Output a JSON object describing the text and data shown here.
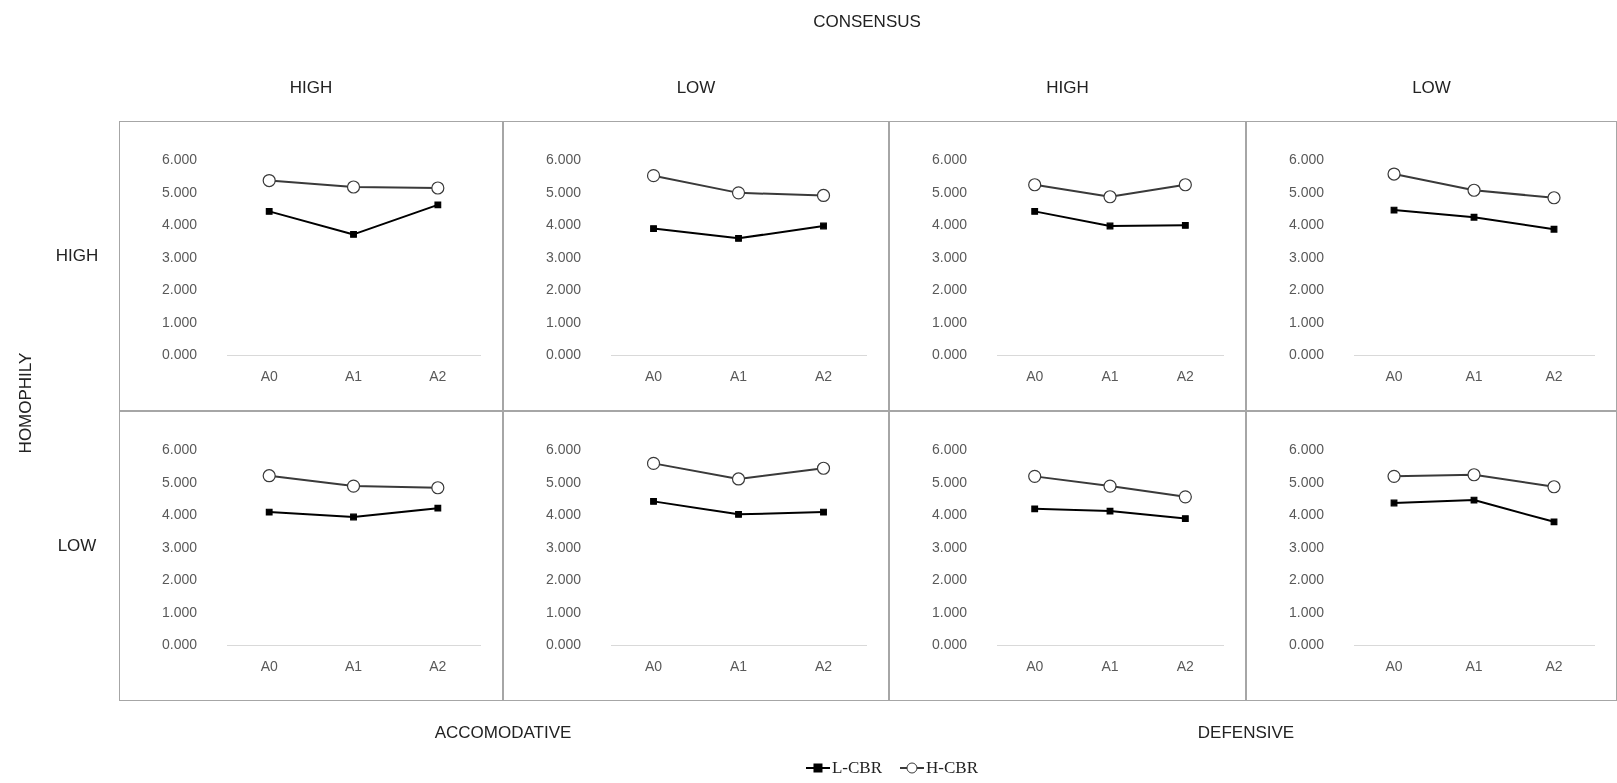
{
  "chart_data": [
    {
      "type": "line",
      "title": "HIGH",
      "ylabel": "HIGH",
      "annotations": [
        "CONSENSUS",
        "HOMOPHILY"
      ],
      "categories": [
        "A0",
        "A1",
        "A2"
      ],
      "ylim": [
        0,
        6
      ],
      "yticks": [
        {
          "value": 0,
          "label": "0.000"
        },
        {
          "value": 1,
          "label": "1.000"
        },
        {
          "value": 2,
          "label": "2.000"
        },
        {
          "value": 3,
          "label": "3.000"
        },
        {
          "value": 4,
          "label": "4.000"
        },
        {
          "value": 5,
          "label": "5.000"
        },
        {
          "value": 6,
          "label": "6.000"
        }
      ],
      "series": [
        {
          "color": "#000000",
          "marker": "square",
          "values": [
            4.43,
            3.72,
            4.63
          ]
        },
        {
          "color": "#3a3a3a",
          "marker": "circle",
          "values": [
            5.38,
            5.18,
            5.15
          ]
        }
      ]
    },
    {
      "type": "line",
      "title": "LOW",
      "categories": [
        "A0",
        "A1",
        "A2"
      ],
      "ylim": [
        0,
        6
      ],
      "yticks": [
        {
          "value": 0,
          "label": "0.000"
        },
        {
          "value": 1,
          "label": "1.000"
        },
        {
          "value": 2,
          "label": "2.000"
        },
        {
          "value": 3,
          "label": "3.000"
        },
        {
          "value": 4,
          "label": "4.000"
        },
        {
          "value": 5,
          "label": "5.000"
        },
        {
          "value": 6,
          "label": "6.000"
        }
      ],
      "series": [
        {
          "color": "#000000",
          "marker": "square",
          "values": [
            3.9,
            3.6,
            3.98
          ]
        },
        {
          "color": "#3a3a3a",
          "marker": "circle",
          "values": [
            5.53,
            5.0,
            4.92
          ]
        }
      ]
    },
    {
      "type": "line",
      "title": "HIGH",
      "categories": [
        "A0",
        "A1",
        "A2"
      ],
      "ylim": [
        0,
        6
      ],
      "yticks": [
        {
          "value": 0,
          "label": "0.000"
        },
        {
          "value": 1,
          "label": "1.000"
        },
        {
          "value": 2,
          "label": "2.000"
        },
        {
          "value": 3,
          "label": "3.000"
        },
        {
          "value": 4,
          "label": "4.000"
        },
        {
          "value": 5,
          "label": "5.000"
        },
        {
          "value": 6,
          "label": "6.000"
        }
      ],
      "series": [
        {
          "color": "#000000",
          "marker": "square",
          "values": [
            4.43,
            3.98,
            4.0
          ]
        },
        {
          "color": "#3a3a3a",
          "marker": "circle",
          "values": [
            5.25,
            4.88,
            5.25
          ]
        }
      ]
    },
    {
      "type": "line",
      "title": "LOW",
      "categories": [
        "A0",
        "A1",
        "A2"
      ],
      "ylim": [
        0,
        6
      ],
      "yticks": [
        {
          "value": 0,
          "label": "0.000"
        },
        {
          "value": 1,
          "label": "1.000"
        },
        {
          "value": 2,
          "label": "2.000"
        },
        {
          "value": 3,
          "label": "3.000"
        },
        {
          "value": 4,
          "label": "4.000"
        },
        {
          "value": 5,
          "label": "5.000"
        },
        {
          "value": 6,
          "label": "6.000"
        }
      ],
      "series": [
        {
          "color": "#000000",
          "marker": "square",
          "values": [
            4.47,
            4.25,
            3.88
          ]
        },
        {
          "color": "#3a3a3a",
          "marker": "circle",
          "values": [
            5.58,
            5.08,
            4.85
          ]
        }
      ]
    },
    {
      "type": "line",
      "ylabel": "LOW",
      "xlabel": "ACCOMODATIVE",
      "legend": "bottom",
      "categories": [
        "A0",
        "A1",
        "A2"
      ],
      "ylim": [
        0,
        6
      ],
      "yticks": [
        {
          "value": 0,
          "label": "0.000"
        },
        {
          "value": 1,
          "label": "1.000"
        },
        {
          "value": 2,
          "label": "2.000"
        },
        {
          "value": 3,
          "label": "3.000"
        },
        {
          "value": 4,
          "label": "4.000"
        },
        {
          "value": 5,
          "label": "5.000"
        },
        {
          "value": 6,
          "label": "6.000"
        }
      ],
      "series": [
        {
          "name": "L-CBR",
          "color": "#000000",
          "marker": "square",
          "values": [
            4.1,
            3.95,
            4.22
          ]
        },
        {
          "name": "H-CBR",
          "color": "#3a3a3a",
          "marker": "circle",
          "values": [
            5.22,
            4.9,
            4.85
          ]
        }
      ]
    },
    {
      "type": "line",
      "categories": [
        "A0",
        "A1",
        "A2"
      ],
      "ylim": [
        0,
        6
      ],
      "yticks": [
        {
          "value": 0,
          "label": "0.000"
        },
        {
          "value": 1,
          "label": "1.000"
        },
        {
          "value": 2,
          "label": "2.000"
        },
        {
          "value": 3,
          "label": "3.000"
        },
        {
          "value": 4,
          "label": "4.000"
        },
        {
          "value": 5,
          "label": "5.000"
        },
        {
          "value": 6,
          "label": "6.000"
        }
      ],
      "series": [
        {
          "color": "#000000",
          "marker": "square",
          "values": [
            4.43,
            4.03,
            4.1
          ]
        },
        {
          "color": "#3a3a3a",
          "marker": "circle",
          "values": [
            5.6,
            5.12,
            5.45
          ]
        }
      ]
    },
    {
      "type": "line",
      "xlabel": "DEFENSIVE",
      "categories": [
        "A0",
        "A1",
        "A2"
      ],
      "ylim": [
        0,
        6
      ],
      "yticks": [
        {
          "value": 0,
          "label": "0.000"
        },
        {
          "value": 1,
          "label": "1.000"
        },
        {
          "value": 2,
          "label": "2.000"
        },
        {
          "value": 3,
          "label": "3.000"
        },
        {
          "value": 4,
          "label": "4.000"
        },
        {
          "value": 5,
          "label": "5.000"
        },
        {
          "value": 6,
          "label": "6.000"
        }
      ],
      "series": [
        {
          "color": "#000000",
          "marker": "square",
          "values": [
            4.2,
            4.13,
            3.9
          ]
        },
        {
          "color": "#3a3a3a",
          "marker": "circle",
          "values": [
            5.2,
            4.9,
            4.57
          ]
        }
      ]
    },
    {
      "type": "line",
      "categories": [
        "A0",
        "A1",
        "A2"
      ],
      "ylim": [
        0,
        6
      ],
      "yticks": [
        {
          "value": 0,
          "label": "0.000"
        },
        {
          "value": 1,
          "label": "1.000"
        },
        {
          "value": 2,
          "label": "2.000"
        },
        {
          "value": 3,
          "label": "3.000"
        },
        {
          "value": 4,
          "label": "4.000"
        },
        {
          "value": 5,
          "label": "5.000"
        },
        {
          "value": 6,
          "label": "6.000"
        }
      ],
      "series": [
        {
          "color": "#000000",
          "marker": "square",
          "values": [
            4.38,
            4.47,
            3.8
          ]
        },
        {
          "color": "#3a3a3a",
          "marker": "circle",
          "values": [
            5.2,
            5.25,
            4.88
          ]
        }
      ]
    }
  ]
}
